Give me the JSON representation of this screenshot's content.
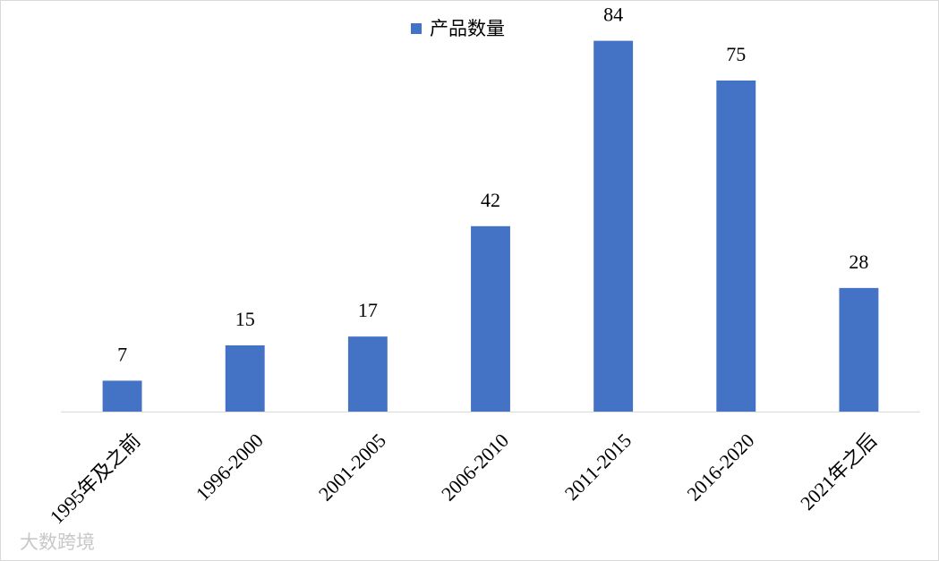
{
  "chart_data": {
    "type": "bar",
    "categories": [
      "1995年及之前",
      "1996-2000",
      "2001-2005",
      "2006-2010",
      "2011-2015",
      "2016-2020",
      "2021年之后"
    ],
    "series": [
      {
        "name": "产品数量",
        "color": "#4472c4",
        "values": [
          7,
          15,
          17,
          42,
          84,
          75,
          28
        ]
      }
    ],
    "ylim": [
      0,
      90
    ],
    "legend": "top",
    "watermark": "大数跨境"
  }
}
